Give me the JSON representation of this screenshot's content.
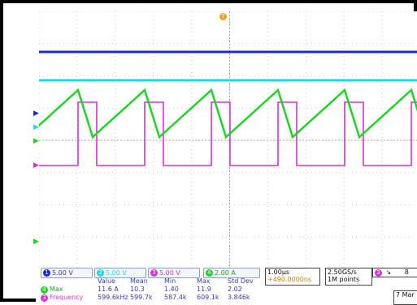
{
  "colors": {
    "ch1": "#1b2bd6",
    "ch2": "#1fd6e6",
    "ch3": "#d633d6",
    "ch4": "#22d22a",
    "grid": "#c9c9c9",
    "trigger": "#f4a41b"
  },
  "markers": {
    "trigger_top": "T"
  },
  "channels": [
    {
      "num": "1",
      "scale": "5.00 V",
      "color": "#1b2bd6"
    },
    {
      "num": "2",
      "scale": "5.00 V",
      "color": "#1fd6e6"
    },
    {
      "num": "3",
      "scale": "5.00 V",
      "color": "#d633d6"
    },
    {
      "num": "4",
      "scale": "2.00 A",
      "color": "#22d22a"
    }
  ],
  "timebase": {
    "scale": "1.00µs",
    "delay": "+490.0000ns"
  },
  "acq": {
    "rate": "2.50GS/s",
    "points": "1M points"
  },
  "trigger": {
    "ch": "3",
    "level": "8"
  },
  "date": "7 Mar",
  "stats": {
    "headers": [
      "Value",
      "Mean",
      "Min",
      "Max",
      "Std Dev"
    ],
    "rows": [
      {
        "ch": "4",
        "label": "Max",
        "vals": [
          "11.6 A",
          "10.3",
          "1.40",
          "11.9",
          "2.02"
        ]
      },
      {
        "ch": "3",
        "label": "Frequency",
        "vals": [
          "599.6kHz",
          "599.7k",
          "587.4k",
          "609.1k",
          "3.846k"
        ]
      }
    ]
  }
}
